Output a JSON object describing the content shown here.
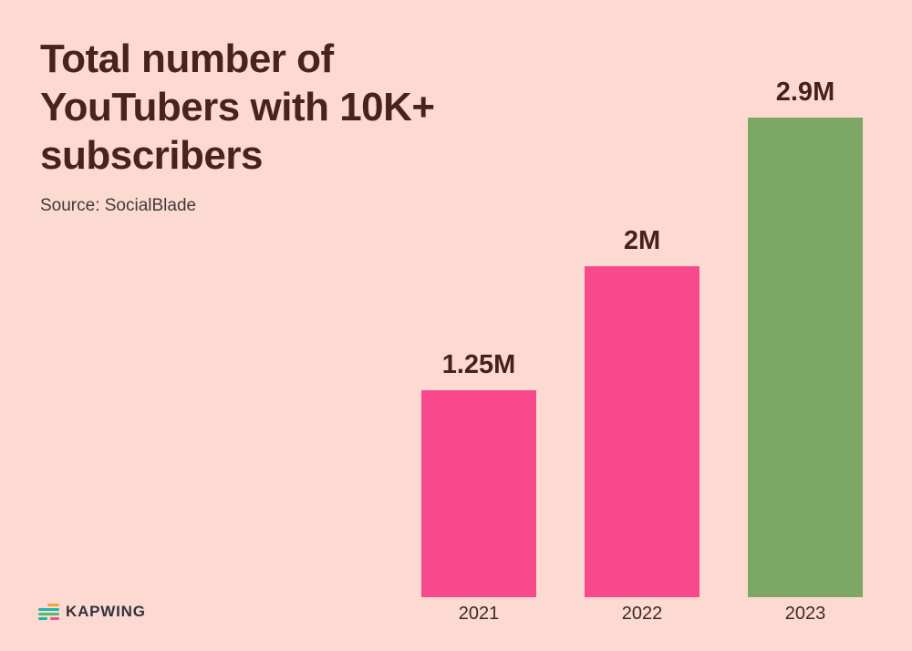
{
  "background_color": "#FCDAD1",
  "header": {
    "title": "Total number of YouTubers with 10K+ subscribers",
    "title_color": "#4A221C",
    "source": "Source: SocialBlade"
  },
  "chart_data": {
    "type": "bar",
    "title": "Total number of YouTubers with 10K+ subscribers",
    "source": "Source: SocialBlade",
    "categories": [
      "2021",
      "2022",
      "2023"
    ],
    "values": [
      1250000,
      2000000,
      2900000
    ],
    "value_labels": [
      "1.25M",
      "2M",
      "2.9M"
    ],
    "bar_colors": [
      "#F9498D",
      "#F9498D",
      "#7DA765"
    ],
    "ylim": [
      0,
      2900000
    ],
    "xlabel": "",
    "ylabel": "",
    "grid": false,
    "legend": false,
    "annotations": "value labels shown above each bar; 2021 and 2022 bars pink, 2023 bar green"
  },
  "branding": {
    "logo_text": "KAPWING",
    "logo_icon": "kapwing-stripes-icon",
    "logo_colors": {
      "orange": "#F9A03F",
      "teal": "#18B7B0",
      "green": "#4FBE68",
      "pink": "#F9498D",
      "text": "#33323E"
    }
  }
}
